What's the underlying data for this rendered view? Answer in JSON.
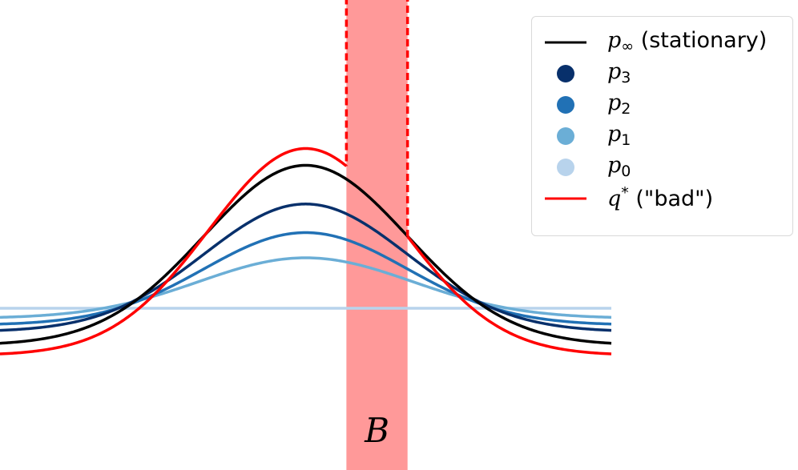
{
  "chart_data": {
    "type": "line",
    "title": "",
    "xlabel": "",
    "ylabel": "",
    "xlim": [
      -3.0,
      3.0
    ],
    "ylim": [
      -0.4,
      3.0
    ],
    "grid": false,
    "legend_placement": "top-right",
    "series": [
      {
        "name": "p_inf",
        "color": "#000000",
        "curve": "gaussian",
        "amplitude": 0.85,
        "baseline": -0.22,
        "sigma": 1.0
      },
      {
        "name": "p_3",
        "color": "#08306b",
        "curve": "gaussian",
        "amplitude": 0.62,
        "baseline": -0.14,
        "sigma": 1.0
      },
      {
        "name": "p_2",
        "color": "#2171b5",
        "curve": "gaussian",
        "amplitude": 0.45,
        "baseline": -0.1,
        "sigma": 1.0
      },
      {
        "name": "p_1",
        "color": "#6baed6",
        "curve": "gaussian",
        "amplitude": 0.3,
        "baseline": -0.06,
        "sigma": 1.05
      },
      {
        "name": "p_0",
        "color": "#b8d3ec",
        "curve": "constant",
        "value": 0.0
      },
      {
        "name": "q_star",
        "color": "#ff0000",
        "curve": "gaussian_with_bump",
        "amplitude": 0.95,
        "baseline": -0.28,
        "sigma": 0.95,
        "bump_region": [
          0.4,
          1.0
        ],
        "bump_top": [
          2.85,
          2.6
        ],
        "bump_bottom": [
          1.15,
          0.88
        ]
      }
    ],
    "regions": [
      {
        "label": "B",
        "x_range": [
          0.4,
          1.0
        ],
        "color": "#ff8080"
      }
    ]
  },
  "legend": {
    "items": [
      {
        "symbol": "p",
        "sub": "∞",
        "text": " (stationary)",
        "handle": "line",
        "color": "#000000"
      },
      {
        "symbol": "p",
        "sub": "3",
        "text": "",
        "handle": "dot",
        "color": "#08306b"
      },
      {
        "symbol": "p",
        "sub": "2",
        "text": "",
        "handle": "dot",
        "color": "#2171b5"
      },
      {
        "symbol": "p",
        "sub": "1",
        "text": "",
        "handle": "dot",
        "color": "#6baed6"
      },
      {
        "symbol": "p",
        "sub": "0",
        "text": "",
        "handle": "dot",
        "color": "#b8d3ec"
      },
      {
        "symbol": "q",
        "sup": "*",
        "text": " (\"bad\")",
        "handle": "line",
        "color": "#ff0000"
      }
    ]
  },
  "region_label": "B"
}
